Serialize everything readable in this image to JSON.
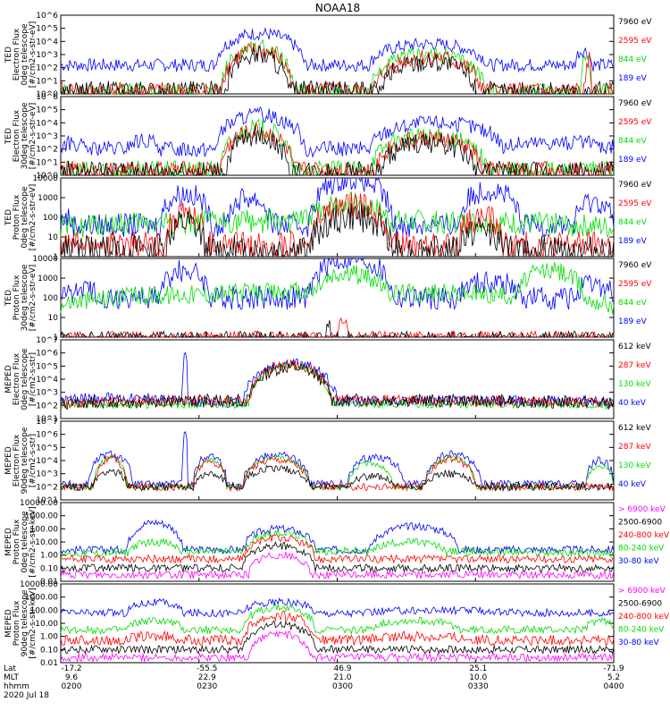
{
  "title": "NOAA18",
  "footer": {
    "row_labels": [
      "Lat",
      "MLT",
      "hhmm"
    ],
    "date": "2020 Jul 18",
    "lat": [
      "-17.2",
      "-55.5",
      "46.9",
      "25.1",
      "-71.9"
    ],
    "mlt": [
      "9.6",
      "22.9",
      "21.0",
      "10.0",
      "5.2"
    ],
    "hhmm": [
      "0200",
      "0230",
      "0300",
      "0330",
      "0400"
    ]
  },
  "colors": {
    "black": "#000000",
    "blue": "#0000ff",
    "red": "#ff0000",
    "green": "#00dd00",
    "magenta": "#ff00ff"
  },
  "chart_data": [
    {
      "type": "line",
      "scale": "log",
      "ylabel_lines": [
        "TED",
        "Electron Flux",
        "0deg telescope",
        "[#/cm2-s-str-eV]"
      ],
      "yticks": [
        "10^0",
        "10^1",
        "10^2",
        "10^3",
        "10^4",
        "10^5",
        "10^6"
      ],
      "ylim": [
        1,
        1000000
      ],
      "series": [
        {
          "name": "7960 eV",
          "color": "#000000"
        },
        {
          "name": "2595 eV",
          "color": "#ff0000"
        },
        {
          "name": "844 eV",
          "color": "#00dd00"
        },
        {
          "name": "189 eV",
          "color": "#0000ff"
        }
      ],
      "envelopes": [
        {
          "c": "#0000ff",
          "base": 2.2,
          "spread": 0.5,
          "segs": [
            [
              0.28,
              0.44,
              4.6
            ],
            [
              0.56,
              0.77,
              3.8
            ],
            [
              0.93,
              0.96,
              3.3
            ]
          ]
        },
        {
          "c": "#00dd00",
          "base": 0.2,
          "spread": 0.6,
          "segs": [
            [
              0.29,
              0.42,
              3.6
            ],
            [
              0.56,
              0.77,
              3.0
            ],
            [
              0.94,
              0.96,
              2.8
            ]
          ]
        },
        {
          "c": "#ff0000",
          "base": 0.2,
          "spread": 0.7,
          "segs": [
            [
              0.29,
              0.42,
              3.3
            ],
            [
              0.57,
              0.76,
              2.8
            ],
            [
              0.95,
              0.96,
              2.6
            ]
          ]
        },
        {
          "c": "#000000",
          "base": 0.2,
          "spread": 0.8,
          "segs": [
            [
              0.3,
              0.41,
              3.0
            ],
            [
              0.58,
              0.75,
              2.5
            ]
          ]
        }
      ]
    },
    {
      "type": "line",
      "scale": "log",
      "ylabel_lines": [
        "TED",
        "Electron Flux",
        "30deg telescope",
        "[#/cm2-s-str-eV]"
      ],
      "yticks": [
        "10^0",
        "10^1",
        "10^2",
        "10^3",
        "10^4",
        "10^5",
        "10^6"
      ],
      "ylim": [
        1,
        1000000
      ],
      "series": [
        {
          "name": "7960 eV",
          "color": "#000000"
        },
        {
          "name": "2595 eV",
          "color": "#ff0000"
        },
        {
          "name": "844 eV",
          "color": "#00dd00"
        },
        {
          "name": "189 eV",
          "color": "#0000ff"
        }
      ],
      "envelopes": [
        {
          "c": "#0000ff",
          "base": 2.0,
          "spread": 0.6,
          "segs": [
            [
              0.0,
              0.04,
              2.4
            ],
            [
              0.12,
              0.18,
              2.6
            ],
            [
              0.28,
              0.44,
              4.6
            ],
            [
              0.56,
              0.8,
              4.0
            ],
            [
              0.8,
              1.0,
              2.5
            ]
          ]
        },
        {
          "c": "#00dd00",
          "base": 0.4,
          "spread": 0.7,
          "segs": [
            [
              0.29,
              0.42,
              3.6
            ],
            [
              0.56,
              0.77,
              3.0
            ]
          ]
        },
        {
          "c": "#ff0000",
          "base": 0.4,
          "spread": 0.7,
          "segs": [
            [
              0.29,
              0.42,
              3.3
            ],
            [
              0.57,
              0.76,
              2.8
            ]
          ]
        },
        {
          "c": "#000000",
          "base": 0.3,
          "spread": 0.8,
          "segs": [
            [
              0.3,
              0.41,
              3.0
            ],
            [
              0.58,
              0.75,
              2.5
            ]
          ]
        }
      ]
    },
    {
      "type": "line",
      "scale": "log",
      "ylabel_lines": [
        "TED",
        "Proton Flux",
        "0deg telescope",
        "[#/cm2-s-str-eV]"
      ],
      "yticks": [
        "1",
        "10",
        "100",
        "1000",
        "10000"
      ],
      "ylim": [
        1,
        10000
      ],
      "series": [
        {
          "name": "7960 eV",
          "color": "#000000"
        },
        {
          "name": "2595 eV",
          "color": "#ff0000"
        },
        {
          "name": "844 eV",
          "color": "#00dd00"
        },
        {
          "name": "189 eV",
          "color": "#0000ff"
        }
      ],
      "envelopes": [
        {
          "c": "#0000ff",
          "base": 1.6,
          "spread": 0.6,
          "segs": [
            [
              0.0,
              0.02,
              2.0
            ],
            [
              0.18,
              0.27,
              3.2
            ],
            [
              0.3,
              0.38,
              3.0
            ],
            [
              0.45,
              0.6,
              4.0
            ],
            [
              0.72,
              0.83,
              3.4
            ],
            [
              0.93,
              1.0,
              2.8
            ]
          ]
        },
        {
          "c": "#00dd00",
          "base": 1.4,
          "spread": 0.6,
          "segs": [
            [
              0.0,
              1.0,
              1.8
            ],
            [
              0.44,
              0.6,
              2.7
            ]
          ]
        },
        {
          "c": "#ff0000",
          "base": 0.6,
          "spread": 0.7,
          "segs": [
            [
              0.19,
              0.26,
              2.2
            ],
            [
              0.45,
              0.6,
              2.6
            ],
            [
              0.72,
              0.8,
              2.0
            ]
          ]
        },
        {
          "c": "#000000",
          "base": 0.3,
          "spread": 0.8,
          "segs": [
            [
              0.19,
              0.26,
              1.6
            ],
            [
              0.45,
              0.6,
              2.0
            ],
            [
              0.72,
              0.8,
              1.4
            ]
          ]
        }
      ]
    },
    {
      "type": "line",
      "scale": "log",
      "ylabel_lines": [
        "TED",
        "Proton Flux",
        "30deg telescope",
        "[#/cm2-s-str-eV]"
      ],
      "yticks": [
        "1",
        "10",
        "100",
        "1000",
        "10000"
      ],
      "ylim": [
        1,
        10000
      ],
      "series": [
        {
          "name": "7960 eV",
          "color": "#000000"
        },
        {
          "name": "2595 eV",
          "color": "#ff0000"
        },
        {
          "name": "844 eV",
          "color": "#00dd00"
        },
        {
          "name": "189 eV",
          "color": "#0000ff"
        }
      ],
      "envelopes": [
        {
          "c": "#0000ff",
          "base": 2.0,
          "spread": 0.6,
          "segs": [
            [
              0.0,
              0.08,
              2.4
            ],
            [
              0.18,
              0.27,
              3.4
            ],
            [
              0.45,
              0.6,
              4.0
            ],
            [
              0.72,
              0.83,
              2.8
            ],
            [
              0.93,
              1.0,
              2.6
            ]
          ]
        },
        {
          "c": "#00dd00",
          "base": 1.6,
          "spread": 0.5,
          "segs": [
            [
              0.0,
              1.0,
              2.3
            ],
            [
              0.45,
              0.6,
              3.2
            ],
            [
              0.82,
              0.95,
              3.4
            ]
          ]
        },
        {
          "c": "#ff0000",
          "base": 0.0,
          "spread": 0.3,
          "segs": [
            [
              0.5,
              0.52,
              0.8
            ]
          ]
        },
        {
          "c": "#000000",
          "base": 0.0,
          "spread": 0.3,
          "segs": [
            [
              0.48,
              0.49,
              0.6
            ]
          ]
        }
      ]
    },
    {
      "type": "line",
      "scale": "log",
      "ylabel_lines": [
        "MEPED",
        "Electron Flux",
        "0deg telescope",
        "[#/cm2-s-str]"
      ],
      "yticks": [
        "10^1",
        "10^2",
        "10^3",
        "10^4",
        "10^5",
        "10^6",
        "10^7"
      ],
      "ylim": [
        10,
        10000000
      ],
      "series": [
        {
          "name": "612 keV",
          "color": "#000000"
        },
        {
          "name": "287 keV",
          "color": "#ff0000"
        },
        {
          "name": "130 keV",
          "color": "#00dd00"
        },
        {
          "name": "40 keV",
          "color": "#0000ff"
        }
      ],
      "envelopes": [
        {
          "c": "#0000ff",
          "base": 2.2,
          "spread": 0.4,
          "segs": [
            [
              0.0,
              0.22,
              2.6
            ],
            [
              0.22,
              0.23,
              5.8
            ],
            [
              0.33,
              0.5,
              5.2
            ],
            [
              0.5,
              1.0,
              2.4
            ]
          ]
        },
        {
          "c": "#00dd00",
          "base": 2.0,
          "spread": 0.3,
          "segs": [
            [
              0.34,
              0.49,
              5.0
            ],
            [
              0.0,
              1.0,
              2.1
            ]
          ]
        },
        {
          "c": "#ff0000",
          "base": 2.1,
          "spread": 0.4,
          "segs": [
            [
              0.34,
              0.49,
              5.1
            ],
            [
              0.0,
              1.0,
              2.4
            ]
          ]
        },
        {
          "c": "#000000",
          "base": 2.1,
          "spread": 0.5,
          "segs": [
            [
              0.34,
              0.49,
              4.9
            ],
            [
              0.0,
              1.0,
              2.4
            ]
          ]
        }
      ]
    },
    {
      "type": "line",
      "scale": "log",
      "ylabel_lines": [
        "MEPED",
        "Electron Flux",
        "90deg telescope",
        "[#/cm2-s-str]"
      ],
      "yticks": [
        "10^1",
        "10^2",
        "10^3",
        "10^4",
        "10^5",
        "10^6",
        "10^7"
      ],
      "ylim": [
        10,
        10000000
      ],
      "series": [
        {
          "name": "612 keV",
          "color": "#000000"
        },
        {
          "name": "287 keV",
          "color": "#ff0000"
        },
        {
          "name": "130 keV",
          "color": "#00dd00"
        },
        {
          "name": "40 keV",
          "color": "#0000ff"
        }
      ],
      "envelopes": [
        {
          "c": "#0000ff",
          "base": 2.2,
          "spread": 0.3,
          "segs": [
            [
              0.05,
              0.13,
              4.5
            ],
            [
              0.22,
              0.23,
              6.5
            ],
            [
              0.24,
              0.3,
              4.4
            ],
            [
              0.33,
              0.45,
              4.5
            ],
            [
              0.52,
              0.62,
              4.3
            ],
            [
              0.66,
              0.76,
              4.5
            ],
            [
              0.95,
              1.0,
              4.0
            ]
          ]
        },
        {
          "c": "#00dd00",
          "base": 2.0,
          "spread": 0.2,
          "segs": [
            [
              0.06,
              0.12,
              4.2
            ],
            [
              0.24,
              0.3,
              4.0
            ],
            [
              0.33,
              0.45,
              4.2
            ],
            [
              0.52,
              0.6,
              3.8
            ],
            [
              0.66,
              0.75,
              4.2
            ],
            [
              0.95,
              1.0,
              3.6
            ]
          ]
        },
        {
          "c": "#ff0000",
          "base": 2.0,
          "spread": 0.3,
          "segs": [
            [
              0.06,
              0.12,
              4.1
            ],
            [
              0.24,
              0.3,
              3.9
            ],
            [
              0.33,
              0.45,
              4.1
            ],
            [
              0.66,
              0.75,
              4.1
            ]
          ]
        },
        {
          "c": "#000000",
          "base": 2.0,
          "spread": 0.3,
          "segs": [
            [
              0.06,
              0.12,
              3.2
            ],
            [
              0.24,
              0.3,
              3.0
            ],
            [
              0.33,
              0.45,
              3.4
            ],
            [
              0.52,
              0.6,
              2.8
            ],
            [
              0.66,
              0.75,
              3.0
            ]
          ]
        }
      ]
    },
    {
      "type": "line",
      "scale": "log",
      "ylabel_lines": [
        "MEPED",
        "Proton Flux",
        "0deg telescope",
        "[#/cm2-s-str-keV]"
      ],
      "yticks": [
        "0.01",
        "0.10",
        "1.00",
        "10.00",
        "100.00",
        "1000.00",
        "10000.00"
      ],
      "ylim": [
        0.01,
        10000
      ],
      "series": [
        {
          "name": "> 6900 keV",
          "color": "#ff00ff"
        },
        {
          "name": "2500-6900",
          "color": "#000000"
        },
        {
          "name": "240-800 keV",
          "color": "#ff0000"
        },
        {
          "name": "80-240 keV",
          "color": "#00dd00"
        },
        {
          "name": "30-80 keV",
          "color": "#0000ff"
        }
      ],
      "envelopes": [
        {
          "c": "#0000ff",
          "base": 0.4,
          "spread": 0.3,
          "segs": [
            [
              0.12,
              0.22,
              2.5
            ],
            [
              0.33,
              0.46,
              2.0
            ],
            [
              0.56,
              0.72,
              2.2
            ],
            [
              0.0,
              1.0,
              0.4
            ]
          ]
        },
        {
          "c": "#00dd00",
          "base": 0.0,
          "spread": 0.3,
          "segs": [
            [
              0.12,
              0.22,
              1.0
            ],
            [
              0.33,
              0.46,
              1.7
            ],
            [
              0.56,
              0.7,
              1.0
            ],
            [
              0.0,
              1.0,
              0.3
            ]
          ]
        },
        {
          "c": "#ff0000",
          "base": -0.3,
          "spread": 0.3,
          "segs": [
            [
              0.33,
              0.46,
              1.3
            ]
          ]
        },
        {
          "c": "#000000",
          "base": -1.0,
          "spread": 0.3,
          "segs": [
            [
              0.33,
              0.46,
              0.7
            ]
          ]
        },
        {
          "c": "#ff00ff",
          "base": -1.5,
          "spread": 0.3,
          "segs": [
            [
              0.34,
              0.45,
              0.0
            ]
          ]
        }
      ]
    },
    {
      "type": "line",
      "scale": "log",
      "ylabel_lines": [
        "MEPED",
        "Proton Flux",
        "90deg telescope",
        "[#/cm2-s-str-keV]"
      ],
      "yticks": [
        "0.01",
        "0.10",
        "1.00",
        "10.00",
        "100.00",
        "1000.00",
        "10000.00"
      ],
      "ylim": [
        0.01,
        10000
      ],
      "series": [
        {
          "name": "> 6900 keV",
          "color": "#ff00ff"
        },
        {
          "name": "2500-6900",
          "color": "#000000"
        },
        {
          "name": "240-800 keV",
          "color": "#ff0000"
        },
        {
          "name": "80-240 keV",
          "color": "#00dd00"
        },
        {
          "name": "30-80 keV",
          "color": "#0000ff"
        }
      ],
      "envelopes": [
        {
          "c": "#0000ff",
          "base": 1.8,
          "spread": 0.3,
          "segs": [
            [
              0.12,
              0.22,
              2.6
            ],
            [
              0.33,
              0.46,
              2.6
            ],
            [
              0.56,
              0.8,
              2.0
            ],
            [
              0.95,
              1.0,
              1.8
            ]
          ]
        },
        {
          "c": "#00dd00",
          "base": 0.5,
          "spread": 0.3,
          "segs": [
            [
              0.12,
              0.22,
              1.2
            ],
            [
              0.33,
              0.46,
              2.2
            ],
            [
              0.56,
              0.72,
              1.2
            ],
            [
              0.95,
              1.0,
              1.2
            ]
          ]
        },
        {
          "c": "#ff0000",
          "base": -0.3,
          "spread": 0.4,
          "segs": [
            [
              0.12,
              0.22,
              0.0
            ],
            [
              0.33,
              0.46,
              1.6
            ],
            [
              0.56,
              0.75,
              0.0
            ]
          ]
        },
        {
          "c": "#000000",
          "base": -1.0,
          "spread": 0.3,
          "segs": [
            [
              0.33,
              0.46,
              0.9
            ]
          ]
        },
        {
          "c": "#ff00ff",
          "base": -1.6,
          "spread": 0.3,
          "segs": [
            [
              0.34,
              0.45,
              0.2
            ]
          ]
        }
      ]
    }
  ]
}
